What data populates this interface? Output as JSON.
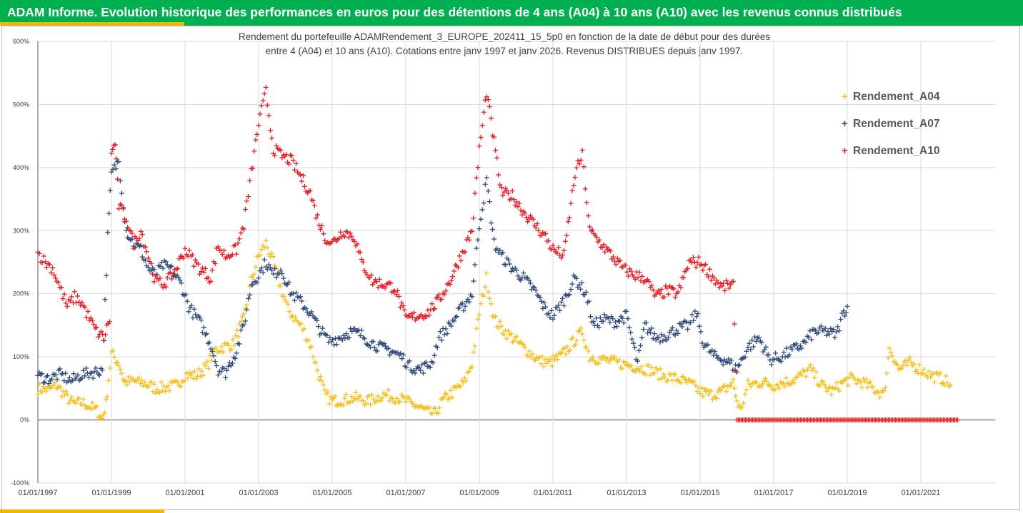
{
  "header": {
    "title": "ADAM Informe. Evolution historique des performances en euros pour des détentions de 4 ans (A04) à 10 ans (A10) avec les revenus connus distribués"
  },
  "colors": {
    "banner": "#00b050",
    "accent": "#f4b400",
    "A04": "#f4c01e",
    "A07": "#2f4a7a",
    "A10": "#e51c23"
  },
  "chart_data": {
    "type": "scatter",
    "title_line1": "Rendement du portefeuille ADAMRendement_3_EUROPE_202411_15_5p0  en fonction de la date de début pour des durées",
    "title_line2": "entre 4 (A04) et 10 ans (A10). Cotations entre janv 1997 et janv 2026. Revenus DISTRIBUES depuis janv 1997.",
    "xlabel": "",
    "ylabel": "",
    "ylim": [
      -100,
      600
    ],
    "y_ticks": [
      "-100%",
      "0%",
      "100%",
      "200%",
      "300%",
      "400%",
      "500%",
      "600%"
    ],
    "x_ticks": [
      "01/01/1997",
      "01/01/1999",
      "01/01/2001",
      "01/01/2003",
      "01/01/2005",
      "01/01/2007",
      "01/01/2009",
      "01/01/2011",
      "01/01/2013",
      "01/01/2015",
      "01/01/2017",
      "01/01/2019",
      "01/01/2021"
    ],
    "legend": [
      "Rendement_A04",
      "Rendement_A07",
      "Rendement_A10"
    ],
    "legend_position": "right",
    "grid": "horizontal",
    "series": [
      {
        "name": "Rendement_A04",
        "color": "#f4c01e",
        "points": [
          [
            1997.0,
            50
          ],
          [
            1997.3,
            48
          ],
          [
            1997.5,
            55
          ],
          [
            1997.8,
            35
          ],
          [
            1998.0,
            25
          ],
          [
            1998.2,
            28
          ],
          [
            1998.4,
            22
          ],
          [
            1998.6,
            15
          ],
          [
            1998.75,
            2
          ],
          [
            1998.85,
            25
          ],
          [
            1999.0,
            105
          ],
          [
            1999.2,
            90
          ],
          [
            1999.35,
            60
          ],
          [
            1999.6,
            62
          ],
          [
            1999.9,
            58
          ],
          [
            2000.2,
            50
          ],
          [
            2000.5,
            52
          ],
          [
            2000.8,
            55
          ],
          [
            2001.0,
            72
          ],
          [
            2001.3,
            70
          ],
          [
            2001.6,
            85
          ],
          [
            2001.8,
            110
          ],
          [
            2002.0,
            115
          ],
          [
            2002.3,
            120
          ],
          [
            2002.6,
            160
          ],
          [
            2002.8,
            220
          ],
          [
            2003.0,
            260
          ],
          [
            2003.2,
            280
          ],
          [
            2003.4,
            250
          ],
          [
            2003.6,
            210
          ],
          [
            2003.8,
            175
          ],
          [
            2004.0,
            160
          ],
          [
            2004.2,
            145
          ],
          [
            2004.4,
            120
          ],
          [
            2004.6,
            80
          ],
          [
            2004.8,
            40
          ],
          [
            2005.0,
            30
          ],
          [
            2005.3,
            32
          ],
          [
            2005.6,
            35
          ],
          [
            2006.0,
            30
          ],
          [
            2006.4,
            40
          ],
          [
            2006.8,
            35
          ],
          [
            2007.0,
            30
          ],
          [
            2007.3,
            22
          ],
          [
            2007.6,
            12
          ],
          [
            2007.8,
            10
          ],
          [
            2008.0,
            30
          ],
          [
            2008.3,
            45
          ],
          [
            2008.6,
            60
          ],
          [
            2008.8,
            90
          ],
          [
            2009.0,
            170
          ],
          [
            2009.2,
            225
          ],
          [
            2009.4,
            160
          ],
          [
            2009.6,
            145
          ],
          [
            2009.9,
            130
          ],
          [
            2010.2,
            115
          ],
          [
            2010.6,
            95
          ],
          [
            2010.9,
            90
          ],
          [
            2011.2,
            100
          ],
          [
            2011.5,
            120
          ],
          [
            2011.8,
            140
          ],
          [
            2012.0,
            100
          ],
          [
            2012.4,
            95
          ],
          [
            2012.8,
            90
          ],
          [
            2013.2,
            85
          ],
          [
            2013.6,
            80
          ],
          [
            2014.0,
            70
          ],
          [
            2014.4,
            65
          ],
          [
            2014.8,
            55
          ],
          [
            2015.0,
            45
          ],
          [
            2015.3,
            40
          ],
          [
            2015.6,
            45
          ],
          [
            2015.9,
            60
          ],
          [
            2016.0,
            30
          ],
          [
            2016.1,
            15
          ],
          [
            2016.3,
            55
          ],
          [
            2016.7,
            60
          ],
          [
            2017.0,
            55
          ],
          [
            2017.3,
            60
          ],
          [
            2017.6,
            65
          ],
          [
            2018.0,
            80
          ],
          [
            2018.3,
            55
          ],
          [
            2018.6,
            45
          ],
          [
            2018.9,
            60
          ],
          [
            2019.1,
            65
          ],
          [
            2019.4,
            60
          ],
          [
            2019.7,
            50
          ],
          [
            2020.0,
            40
          ],
          [
            2020.15,
            115
          ],
          [
            2020.4,
            80
          ],
          [
            2020.7,
            90
          ],
          [
            2021.0,
            80
          ],
          [
            2021.3,
            70
          ],
          [
            2021.6,
            65
          ],
          [
            2021.8,
            55
          ]
        ]
      },
      {
        "name": "Rendement_A07",
        "color": "#2f4a7a",
        "points": [
          [
            1997.0,
            70
          ],
          [
            1997.3,
            65
          ],
          [
            1997.6,
            72
          ],
          [
            1997.9,
            62
          ],
          [
            1998.2,
            72
          ],
          [
            1998.5,
            75
          ],
          [
            1998.75,
            80
          ],
          [
            1998.9,
            290
          ],
          [
            1999.0,
            390
          ],
          [
            1999.2,
            410
          ],
          [
            1999.4,
            300
          ],
          [
            1999.6,
            280
          ],
          [
            1999.8,
            270
          ],
          [
            2000.0,
            240
          ],
          [
            2000.2,
            230
          ],
          [
            2000.4,
            245
          ],
          [
            2000.6,
            240
          ],
          [
            2000.9,
            215
          ],
          [
            2001.1,
            180
          ],
          [
            2001.4,
            155
          ],
          [
            2001.7,
            120
          ],
          [
            2001.9,
            80
          ],
          [
            2002.1,
            75
          ],
          [
            2002.4,
            110
          ],
          [
            2002.6,
            150
          ],
          [
            2002.8,
            215
          ],
          [
            2003.0,
            230
          ],
          [
            2003.2,
            250
          ],
          [
            2003.4,
            230
          ],
          [
            2003.6,
            240
          ],
          [
            2003.9,
            200
          ],
          [
            2004.1,
            190
          ],
          [
            2004.4,
            170
          ],
          [
            2004.7,
            140
          ],
          [
            2004.9,
            125
          ],
          [
            2005.2,
            130
          ],
          [
            2005.5,
            140
          ],
          [
            2005.8,
            135
          ],
          [
            2006.0,
            125
          ],
          [
            2006.3,
            115
          ],
          [
            2006.6,
            110
          ],
          [
            2006.9,
            100
          ],
          [
            2007.1,
            85
          ],
          [
            2007.4,
            80
          ],
          [
            2007.7,
            90
          ],
          [
            2007.9,
            130
          ],
          [
            2008.2,
            150
          ],
          [
            2008.5,
            175
          ],
          [
            2008.8,
            200
          ],
          [
            2009.0,
            310
          ],
          [
            2009.2,
            380
          ],
          [
            2009.4,
            280
          ],
          [
            2009.6,
            260
          ],
          [
            2009.9,
            240
          ],
          [
            2010.2,
            225
          ],
          [
            2010.5,
            205
          ],
          [
            2010.8,
            175
          ],
          [
            2011.0,
            165
          ],
          [
            2011.3,
            190
          ],
          [
            2011.6,
            225
          ],
          [
            2011.9,
            200
          ],
          [
            2012.1,
            150
          ],
          [
            2012.4,
            160
          ],
          [
            2012.7,
            155
          ],
          [
            2013.0,
            165
          ],
          [
            2013.3,
            90
          ],
          [
            2013.5,
            150
          ],
          [
            2013.8,
            130
          ],
          [
            2014.1,
            135
          ],
          [
            2014.4,
            145
          ],
          [
            2014.7,
            150
          ],
          [
            2014.9,
            170
          ],
          [
            2015.1,
            120
          ],
          [
            2015.4,
            100
          ],
          [
            2015.7,
            95
          ],
          [
            2016.0,
            80
          ],
          [
            2016.3,
            115
          ],
          [
            2016.6,
            130
          ],
          [
            2016.9,
            95
          ],
          [
            2017.2,
            100
          ],
          [
            2017.5,
            110
          ],
          [
            2017.8,
            120
          ],
          [
            2018.1,
            140
          ],
          [
            2018.4,
            140
          ],
          [
            2018.7,
            135
          ],
          [
            2018.9,
            170
          ],
          [
            2019.0,
            180
          ]
        ]
      },
      {
        "name": "Rendement_A10",
        "color": "#e51c23",
        "points": [
          [
            1997.0,
            265
          ],
          [
            1997.2,
            250
          ],
          [
            1997.4,
            240
          ],
          [
            1997.6,
            210
          ],
          [
            1997.8,
            180
          ],
          [
            1998.0,
            195
          ],
          [
            1998.2,
            185
          ],
          [
            1998.4,
            160
          ],
          [
            1998.6,
            140
          ],
          [
            1998.8,
            130
          ],
          [
            1998.95,
            160
          ],
          [
            1999.0,
            420
          ],
          [
            1999.1,
            440
          ],
          [
            1999.2,
            340
          ],
          [
            1999.4,
            320
          ],
          [
            1999.6,
            280
          ],
          [
            1999.8,
            300
          ],
          [
            2000.0,
            260
          ],
          [
            2000.2,
            220
          ],
          [
            2000.4,
            215
          ],
          [
            2000.6,
            225
          ],
          [
            2000.8,
            245
          ],
          [
            2001.0,
            270
          ],
          [
            2001.2,
            255
          ],
          [
            2001.4,
            240
          ],
          [
            2001.7,
            225
          ],
          [
            2001.9,
            275
          ],
          [
            2002.1,
            260
          ],
          [
            2002.4,
            270
          ],
          [
            2002.6,
            310
          ],
          [
            2002.8,
            390
          ],
          [
            2003.0,
            470
          ],
          [
            2003.2,
            520
          ],
          [
            2003.4,
            430
          ],
          [
            2003.6,
            420
          ],
          [
            2003.9,
            410
          ],
          [
            2004.1,
            390
          ],
          [
            2004.4,
            360
          ],
          [
            2004.6,
            320
          ],
          [
            2004.8,
            290
          ],
          [
            2005.0,
            280
          ],
          [
            2005.3,
            300
          ],
          [
            2005.6,
            290
          ],
          [
            2005.8,
            250
          ],
          [
            2006.1,
            220
          ],
          [
            2006.4,
            215
          ],
          [
            2006.7,
            210
          ],
          [
            2007.0,
            160
          ],
          [
            2007.3,
            165
          ],
          [
            2007.6,
            170
          ],
          [
            2007.9,
            190
          ],
          [
            2008.2,
            220
          ],
          [
            2008.5,
            260
          ],
          [
            2008.8,
            300
          ],
          [
            2009.0,
            430
          ],
          [
            2009.2,
            520
          ],
          [
            2009.4,
            440
          ],
          [
            2009.6,
            360
          ],
          [
            2009.9,
            355
          ],
          [
            2010.2,
            330
          ],
          [
            2010.5,
            310
          ],
          [
            2010.8,
            290
          ],
          [
            2011.0,
            270
          ],
          [
            2011.3,
            260
          ],
          [
            2011.6,
            390
          ],
          [
            2011.8,
            420
          ],
          [
            2012.0,
            300
          ],
          [
            2012.3,
            280
          ],
          [
            2012.6,
            260
          ],
          [
            2012.9,
            240
          ],
          [
            2013.2,
            230
          ],
          [
            2013.5,
            225
          ],
          [
            2013.8,
            195
          ],
          [
            2014.1,
            205
          ],
          [
            2014.4,
            200
          ],
          [
            2014.7,
            250
          ],
          [
            2015.0,
            250
          ],
          [
            2015.3,
            230
          ],
          [
            2015.6,
            210
          ],
          [
            2015.9,
            215
          ],
          [
            2016.0,
            0
          ],
          [
            2016.5,
            0
          ],
          [
            2017.0,
            0
          ],
          [
            2017.5,
            0
          ],
          [
            2018.0,
            0
          ],
          [
            2018.5,
            0
          ],
          [
            2019.0,
            0
          ],
          [
            2019.5,
            0
          ],
          [
            2020.0,
            0
          ],
          [
            2020.5,
            0
          ],
          [
            2021.0,
            0
          ],
          [
            2021.5,
            0
          ],
          [
            2022.0,
            0
          ]
        ]
      }
    ]
  }
}
